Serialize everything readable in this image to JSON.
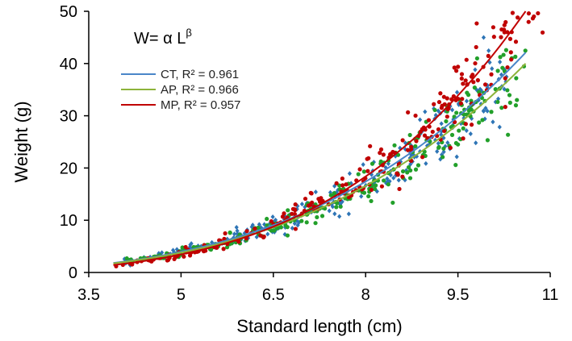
{
  "chart_data": {
    "type": "scatter",
    "title": "",
    "formula": {
      "base": "W= α L",
      "exponent": "β"
    },
    "xlabel": "Standard length (cm)",
    "ylabel": "Weight (g)",
    "xlim": [
      3.5,
      11
    ],
    "ylim": [
      0,
      50
    ],
    "x_ticks": [
      3.5,
      5,
      6.5,
      8,
      9.5,
      11
    ],
    "x_tick_labels": [
      "3.5",
      "5",
      "6.5",
      "8",
      "9.5",
      "11"
    ],
    "y_ticks": [
      0,
      10,
      20,
      30,
      40,
      50
    ],
    "y_tick_labels": [
      "0",
      "10",
      "20",
      "30",
      "40",
      "50"
    ],
    "grid": false,
    "legend_position": "top-left",
    "series": [
      {
        "name": "CT",
        "label": "CT, R² = 0.961",
        "color": "#2e75b6",
        "marker": "diamond",
        "fit": {
          "a": 0.0254,
          "b": 3.14,
          "x_start": 3.9,
          "x_end": 10.6
        },
        "x_range": [
          4.0,
          10.3
        ]
      },
      {
        "name": "AP",
        "label": "AP, R² = 0.966",
        "color": "#22a02a",
        "marker": "circle",
        "fit": {
          "a": 0.0247,
          "b": 3.13,
          "x_start": 3.9,
          "x_end": 10.6
        },
        "x_range": [
          4.1,
          10.6
        ]
      },
      {
        "name": "MP",
        "label": "MP, R² = 0.957",
        "color": "#c00000",
        "marker": "circle",
        "fit": {
          "a": 0.0112,
          "b": 3.56,
          "x_start": 3.9,
          "x_end": 10.6
        },
        "x_range": [
          3.9,
          11.0
        ]
      }
    ],
    "line_colors": {
      "CT": "#4a86c8",
      "AP": "#8db33a",
      "MP": "#c00000"
    },
    "sample_points": 260,
    "noise": 0.11
  }
}
